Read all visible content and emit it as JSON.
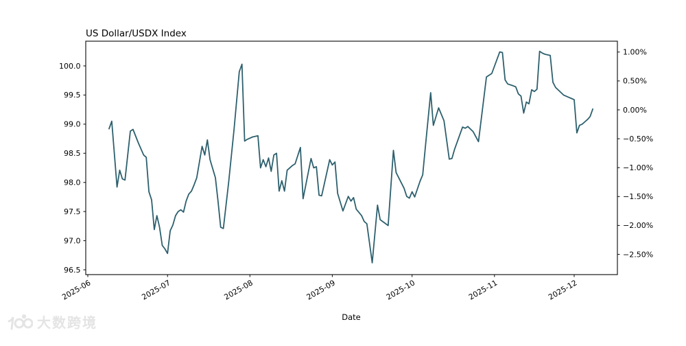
{
  "title": "US Dollar/USDX Index",
  "xlabel": "Date",
  "watermark": {
    "text": "大数跨境",
    "logo_text": "100",
    "color": "#e4e4e4"
  },
  "chart_data": {
    "type": "line",
    "title": "US Dollar/USDX Index",
    "xlabel": "Date",
    "ylabel": "",
    "legend": "none",
    "grid": false,
    "line_color": "#2c5f6d",
    "axis_color": "#1a1a1a",
    "x_range": [
      "2025-05-31",
      "2025-12-17"
    ],
    "ylim_left": [
      96.42,
      100.42
    ],
    "x_ticks": [
      {
        "label": "2025-06",
        "date": "2025-06-01"
      },
      {
        "label": "2025-07",
        "date": "2025-07-01"
      },
      {
        "label": "2025-08",
        "date": "2025-08-01"
      },
      {
        "label": "2025-09",
        "date": "2025-09-01"
      },
      {
        "label": "2025-10",
        "date": "2025-10-01"
      },
      {
        "label": "2025-11",
        "date": "2025-11-01"
      },
      {
        "label": "2025-12",
        "date": "2025-12-01"
      }
    ],
    "left_axis": {
      "ticks": [
        {
          "label": "100.0",
          "value": 100.0
        },
        {
          "label": "99.5",
          "value": 99.5
        },
        {
          "label": "99.0",
          "value": 99.0
        },
        {
          "label": "98.5",
          "value": 98.5
        },
        {
          "label": "98.0",
          "value": 98.0
        },
        {
          "label": "97.5",
          "value": 97.5
        },
        {
          "label": "97.0",
          "value": 97.0
        },
        {
          "label": "96.5",
          "value": 96.5
        }
      ]
    },
    "right_axis": {
      "base_value": 99.2458,
      "ticks": [
        {
          "label": "1.00%",
          "pct": 1.0
        },
        {
          "label": "0.50%",
          "pct": 0.5
        },
        {
          "label": "0.00%",
          "pct": 0.0
        },
        {
          "label": "−0.50%",
          "pct": -0.5
        },
        {
          "label": "−1.00%",
          "pct": -1.0
        },
        {
          "label": "−1.50%",
          "pct": -1.5
        },
        {
          "label": "−2.00%",
          "pct": -2.0
        },
        {
          "label": "−2.50%",
          "pct": -2.5
        }
      ]
    },
    "series": [
      {
        "name": "US Dollar/USDX Index",
        "points": [
          [
            "2025-06-09",
            98.92
          ],
          [
            "2025-06-10",
            99.05
          ],
          [
            "2025-06-12",
            97.92
          ],
          [
            "2025-06-13",
            98.21
          ],
          [
            "2025-06-14",
            98.06
          ],
          [
            "2025-06-15",
            98.04
          ],
          [
            "2025-06-17",
            98.88
          ],
          [
            "2025-06-18",
            98.91
          ],
          [
            "2025-06-20",
            98.68
          ],
          [
            "2025-06-22",
            98.47
          ],
          [
            "2025-06-23",
            98.43
          ],
          [
            "2025-06-24",
            97.84
          ],
          [
            "2025-06-25",
            97.7
          ],
          [
            "2025-06-26",
            97.19
          ],
          [
            "2025-06-27",
            97.43
          ],
          [
            "2025-06-28",
            97.23
          ],
          [
            "2025-06-29",
            96.92
          ],
          [
            "2025-06-30",
            96.86
          ],
          [
            "2025-07-01",
            96.78
          ],
          [
            "2025-07-02",
            97.17
          ],
          [
            "2025-07-03",
            97.27
          ],
          [
            "2025-07-04",
            97.43
          ],
          [
            "2025-07-05",
            97.5
          ],
          [
            "2025-07-06",
            97.53
          ],
          [
            "2025-07-07",
            97.49
          ],
          [
            "2025-07-08",
            97.68
          ],
          [
            "2025-07-09",
            97.8
          ],
          [
            "2025-07-10",
            97.85
          ],
          [
            "2025-07-11",
            97.96
          ],
          [
            "2025-07-12",
            98.08
          ],
          [
            "2025-07-14",
            98.62
          ],
          [
            "2025-07-15",
            98.47
          ],
          [
            "2025-07-16",
            98.73
          ],
          [
            "2025-07-17",
            98.39
          ],
          [
            "2025-07-19",
            98.08
          ],
          [
            "2025-07-20",
            97.68
          ],
          [
            "2025-07-21",
            97.23
          ],
          [
            "2025-07-22",
            97.21
          ],
          [
            "2025-07-24",
            98.0
          ],
          [
            "2025-07-26",
            98.9
          ],
          [
            "2025-07-28",
            99.9
          ],
          [
            "2025-07-29",
            100.03
          ],
          [
            "2025-07-30",
            98.71
          ],
          [
            "2025-07-31",
            98.74
          ],
          [
            "2025-08-02",
            98.78
          ],
          [
            "2025-08-04",
            98.8
          ],
          [
            "2025-08-05",
            98.25
          ],
          [
            "2025-08-06",
            98.39
          ],
          [
            "2025-08-07",
            98.27
          ],
          [
            "2025-08-08",
            98.42
          ],
          [
            "2025-08-09",
            98.19
          ],
          [
            "2025-08-10",
            98.47
          ],
          [
            "2025-08-11",
            98.5
          ],
          [
            "2025-08-12",
            97.85
          ],
          [
            "2025-08-13",
            98.03
          ],
          [
            "2025-08-14",
            97.85
          ],
          [
            "2025-08-15",
            98.21
          ],
          [
            "2025-08-17",
            98.29
          ],
          [
            "2025-08-18",
            98.32
          ],
          [
            "2025-08-20",
            98.6
          ],
          [
            "2025-08-21",
            97.72
          ],
          [
            "2025-08-24",
            98.41
          ],
          [
            "2025-08-25",
            98.25
          ],
          [
            "2025-08-26",
            98.27
          ],
          [
            "2025-08-27",
            97.78
          ],
          [
            "2025-08-28",
            97.77
          ],
          [
            "2025-08-31",
            98.39
          ],
          [
            "2025-09-01",
            98.3
          ],
          [
            "2025-09-02",
            98.35
          ],
          [
            "2025-09-03",
            97.81
          ],
          [
            "2025-09-05",
            97.51
          ],
          [
            "2025-09-07",
            97.76
          ],
          [
            "2025-09-08",
            97.68
          ],
          [
            "2025-09-09",
            97.74
          ],
          [
            "2025-09-10",
            97.54
          ],
          [
            "2025-09-12",
            97.43
          ],
          [
            "2025-09-13",
            97.33
          ],
          [
            "2025-09-14",
            97.29
          ],
          [
            "2025-09-16",
            96.62
          ],
          [
            "2025-09-18",
            97.61
          ],
          [
            "2025-09-19",
            97.36
          ],
          [
            "2025-09-22",
            97.26
          ],
          [
            "2025-09-24",
            98.55
          ],
          [
            "2025-09-25",
            98.17
          ],
          [
            "2025-09-28",
            97.9
          ],
          [
            "2025-09-29",
            97.76
          ],
          [
            "2025-09-30",
            97.73
          ],
          [
            "2025-10-01",
            97.84
          ],
          [
            "2025-10-02",
            97.75
          ],
          [
            "2025-10-04",
            98.02
          ],
          [
            "2025-10-05",
            98.13
          ],
          [
            "2025-10-06",
            98.6
          ],
          [
            "2025-10-08",
            99.54
          ],
          [
            "2025-10-09",
            98.98
          ],
          [
            "2025-10-11",
            99.28
          ],
          [
            "2025-10-13",
            99.06
          ],
          [
            "2025-10-15",
            98.4
          ],
          [
            "2025-10-16",
            98.41
          ],
          [
            "2025-10-17",
            98.57
          ],
          [
            "2025-10-20",
            98.95
          ],
          [
            "2025-10-21",
            98.93
          ],
          [
            "2025-10-22",
            98.96
          ],
          [
            "2025-10-24",
            98.87
          ],
          [
            "2025-10-26",
            98.7
          ],
          [
            "2025-10-29",
            99.81
          ],
          [
            "2025-10-31",
            99.87
          ],
          [
            "2025-11-03",
            100.24
          ],
          [
            "2025-11-04",
            100.23
          ],
          [
            "2025-11-05",
            99.76
          ],
          [
            "2025-11-06",
            99.69
          ],
          [
            "2025-11-08",
            99.66
          ],
          [
            "2025-11-09",
            99.64
          ],
          [
            "2025-11-10",
            99.52
          ],
          [
            "2025-11-11",
            99.48
          ],
          [
            "2025-11-12",
            99.19
          ],
          [
            "2025-11-13",
            99.38
          ],
          [
            "2025-11-14",
            99.35
          ],
          [
            "2025-11-15",
            99.59
          ],
          [
            "2025-11-16",
            99.56
          ],
          [
            "2025-11-17",
            99.6
          ],
          [
            "2025-11-18",
            100.25
          ],
          [
            "2025-11-19",
            100.22
          ],
          [
            "2025-11-20",
            100.2
          ],
          [
            "2025-11-22",
            100.18
          ],
          [
            "2025-11-23",
            99.72
          ],
          [
            "2025-11-24",
            99.63
          ],
          [
            "2025-11-27",
            99.5
          ],
          [
            "2025-11-29",
            99.46
          ],
          [
            "2025-11-30",
            99.44
          ],
          [
            "2025-12-01",
            99.42
          ],
          [
            "2025-12-02",
            98.85
          ],
          [
            "2025-12-03",
            98.98
          ],
          [
            "2025-12-04",
            99.0
          ],
          [
            "2025-12-05",
            99.04
          ],
          [
            "2025-12-06",
            99.08
          ],
          [
            "2025-12-07",
            99.13
          ],
          [
            "2025-12-08",
            99.26
          ]
        ]
      }
    ]
  }
}
